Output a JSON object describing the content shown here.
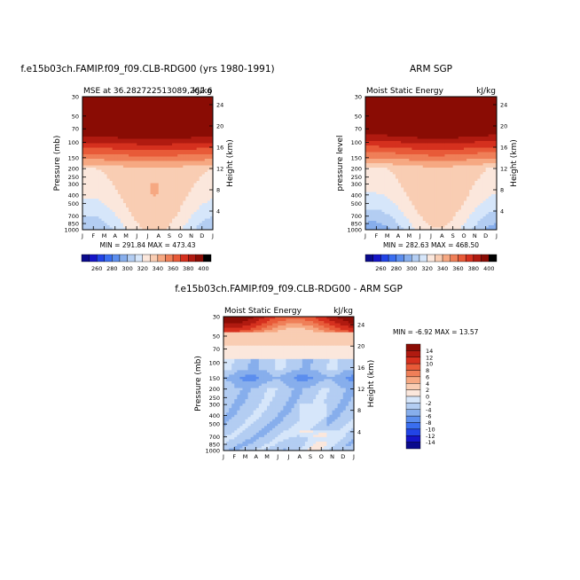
{
  "chart_data": [
    {
      "type": "heatmap",
      "title": "f.e15b03ch.FAMIP.f09_f09.CLB-RDG00 (yrs 1980-1991)",
      "subtitle_left": "MSE at 36.282722513089,262.6",
      "subtitle_right": "kJ/kg",
      "ylabel": "Pressure (mb)",
      "y2label": "Height (km)",
      "x_ticks": [
        "J",
        "F",
        "M",
        "A",
        "M",
        "J",
        "J",
        "A",
        "S",
        "O",
        "N",
        "D",
        "J"
      ],
      "y_ticks": [
        "30",
        "50",
        "70",
        "100",
        "150",
        "200",
        "250",
        "300",
        "400",
        "500",
        "700",
        "850",
        "1000"
      ],
      "y2_ticks": [
        "24",
        "20",
        "16",
        "12",
        "8",
        "4"
      ],
      "minmax": "MIN = 291.84  MAX = 473.43",
      "colorbar_labels": [
        "260",
        "280",
        "300",
        "320",
        "340",
        "360",
        "380",
        "400"
      ],
      "levels": [
        250,
        260,
        270,
        280,
        290,
        300,
        310,
        320,
        330,
        340,
        350,
        360,
        370,
        380,
        390,
        400
      ],
      "field": {
        "min": 291.84,
        "max": 473.43
      }
    },
    {
      "type": "heatmap",
      "title": "ARM SGP",
      "subtitle_left": "Moist Static Energy",
      "subtitle_right": "kJ/kg",
      "ylabel": "pressure  level",
      "y2label": "Height (km)",
      "x_ticks": [
        "J",
        "F",
        "M",
        "A",
        "M",
        "J",
        "J",
        "A",
        "S",
        "O",
        "N",
        "D",
        "J"
      ],
      "y_ticks": [
        "30",
        "50",
        "70",
        "100",
        "150",
        "200",
        "250",
        "300",
        "400",
        "500",
        "700",
        "850",
        "1000"
      ],
      "y2_ticks": [
        "24",
        "20",
        "16",
        "12",
        "8",
        "4"
      ],
      "minmax": "MIN = 282.63  MAX = 468.50",
      "colorbar_labels": [
        "260",
        "280",
        "300",
        "320",
        "340",
        "360",
        "380",
        "400"
      ],
      "levels": [
        250,
        260,
        270,
        280,
        290,
        300,
        310,
        320,
        330,
        340,
        350,
        360,
        370,
        380,
        390,
        400
      ],
      "field": {
        "min": 282.63,
        "max": 468.5
      }
    },
    {
      "type": "heatmap",
      "title": "f.e15b03ch.FAMIP.f09_f09.CLB-RDG00 - ARM SGP",
      "subtitle_left": "Moist Static Energy",
      "subtitle_right": "kJ/kg",
      "ylabel": "Pressure (mb)",
      "y2label": "Height (km)",
      "x_ticks": [
        "J",
        "F",
        "M",
        "A",
        "M",
        "J",
        "J",
        "A",
        "S",
        "O",
        "N",
        "D",
        "J"
      ],
      "y_ticks": [
        "30",
        "50",
        "70",
        "100",
        "150",
        "200",
        "250",
        "300",
        "400",
        "500",
        "700",
        "850",
        "1000"
      ],
      "y2_ticks": [
        "24",
        "20",
        "16",
        "12",
        "8",
        "4"
      ],
      "minmax": "MIN = -6.92 MAX = 13.57",
      "colorbar_labels": [
        "14",
        "12",
        "10",
        "8",
        "6",
        "4",
        "2",
        "0",
        "-2",
        "-4",
        "-6",
        "-8",
        "-10",
        "-12",
        "-14"
      ],
      "levels": [
        -14,
        -12,
        -10,
        -8,
        -6,
        -4,
        -2,
        0,
        2,
        4,
        6,
        8,
        10,
        12,
        14
      ],
      "field": {
        "min": -6.92,
        "max": 13.57
      }
    }
  ],
  "palette": [
    "#0a0a8c",
    "#1515c8",
    "#2244e6",
    "#3a6ef0",
    "#5c8eee",
    "#87aeec",
    "#b3cdf2",
    "#d6e6fa",
    "#fbe7dc",
    "#f9cdb3",
    "#f6a882",
    "#ef7f58",
    "#e85a38",
    "#d5301e",
    "#b01a10",
    "#8a0c04"
  ]
}
